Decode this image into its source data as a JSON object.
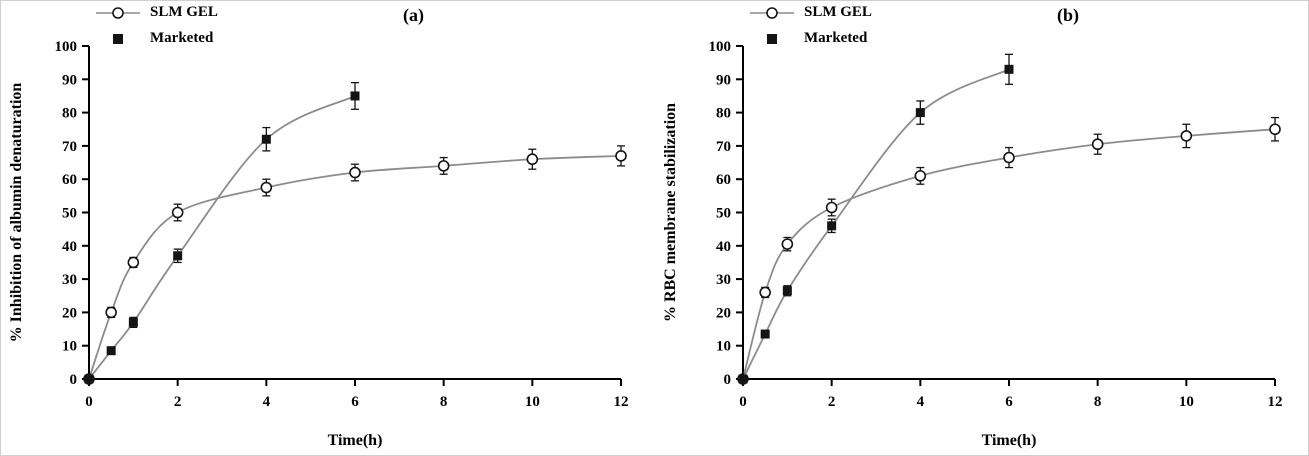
{
  "style": {
    "background": "#ffffff",
    "border_color": "#cfcfcf",
    "axis_color": "#000000",
    "line_color": "#8c8c8c",
    "marker_color": "#141414",
    "text_color": "#000000"
  },
  "chart_data": [
    {
      "type": "line",
      "panel_label": "(a)",
      "title": "",
      "xlabel": "Time(h)",
      "ylabel": "% Inhibition of albumin denaturation",
      "xlim": [
        0,
        12
      ],
      "ylim": [
        0,
        100
      ],
      "xticks": [
        0,
        2,
        4,
        6,
        8,
        10,
        12
      ],
      "yticks": [
        0,
        10,
        20,
        30,
        40,
        50,
        60,
        70,
        80,
        90,
        100
      ],
      "grid": false,
      "legend_position": "top-left",
      "series": [
        {
          "name": "SLM GEL",
          "marker": "open-circle",
          "x": [
            0,
            0.5,
            1,
            2,
            4,
            6,
            8,
            10,
            12
          ],
          "y": [
            0,
            20,
            35,
            50,
            57.5,
            62,
            64,
            66,
            67
          ],
          "yerr": [
            0,
            1.5,
            1.5,
            2.5,
            2.5,
            2.5,
            2.5,
            3,
            3
          ]
        },
        {
          "name": "Marketed",
          "marker": "filled-square",
          "x": [
            0,
            0.5,
            1,
            2,
            4,
            6
          ],
          "y": [
            0,
            8.5,
            17,
            37,
            72,
            85
          ],
          "yerr": [
            0,
            1,
            1.5,
            2,
            3.5,
            4
          ]
        }
      ]
    },
    {
      "type": "line",
      "panel_label": "(b)",
      "title": "",
      "xlabel": "Time(h)",
      "ylabel": "% RBC membrane stabilization",
      "xlim": [
        0,
        12
      ],
      "ylim": [
        0,
        100
      ],
      "xticks": [
        0,
        2,
        4,
        6,
        8,
        10,
        12
      ],
      "yticks": [
        0,
        10,
        20,
        30,
        40,
        50,
        60,
        70,
        80,
        90,
        100
      ],
      "grid": false,
      "legend_position": "top-left",
      "series": [
        {
          "name": "SLM GEL",
          "marker": "open-circle",
          "x": [
            0,
            0.5,
            1,
            2,
            4,
            6,
            8,
            10,
            12
          ],
          "y": [
            0,
            26,
            40.5,
            51.5,
            61,
            66.5,
            70.5,
            73,
            75
          ],
          "yerr": [
            0,
            1.5,
            2,
            2.5,
            2.5,
            3,
            3,
            3.5,
            3.5
          ]
        },
        {
          "name": "Marketed",
          "marker": "filled-square",
          "x": [
            0,
            0.5,
            1,
            2,
            4,
            6
          ],
          "y": [
            0,
            13.5,
            26.5,
            46,
            80,
            93
          ],
          "yerr": [
            0,
            1,
            1.5,
            2,
            3.5,
            4.5
          ]
        }
      ]
    }
  ]
}
